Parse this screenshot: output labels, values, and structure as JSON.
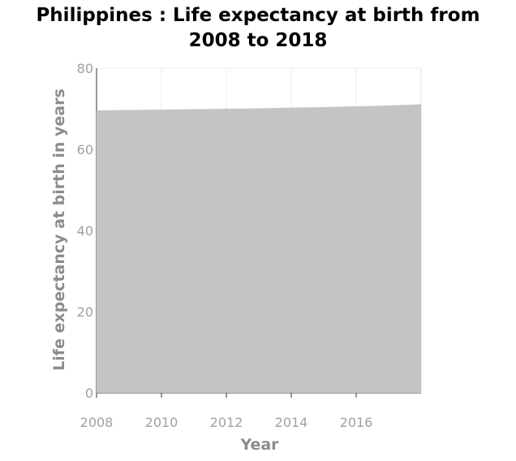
{
  "chart_data": {
    "type": "area",
    "title_line1": "Philippines : Life expectancy at birth from",
    "title_line2": "2008 to 2018",
    "xlabel": "Year",
    "ylabel": "Life expectancy at birth in years",
    "x": [
      2008,
      2009,
      2010,
      2011,
      2012,
      2013,
      2014,
      2015,
      2016,
      2017,
      2018
    ],
    "values": [
      69.6,
      69.7,
      69.8,
      69.9,
      70.0,
      70.1,
      70.3,
      70.4,
      70.6,
      70.8,
      71.1
    ],
    "xlim": [
      2008,
      2018
    ],
    "ylim": [
      0,
      80
    ],
    "x_ticks": [
      2008,
      2010,
      2012,
      2014,
      2016
    ],
    "y_ticks": [
      0,
      20,
      40,
      60,
      80
    ],
    "grid": true,
    "fill_color": "#c4c4c4"
  }
}
